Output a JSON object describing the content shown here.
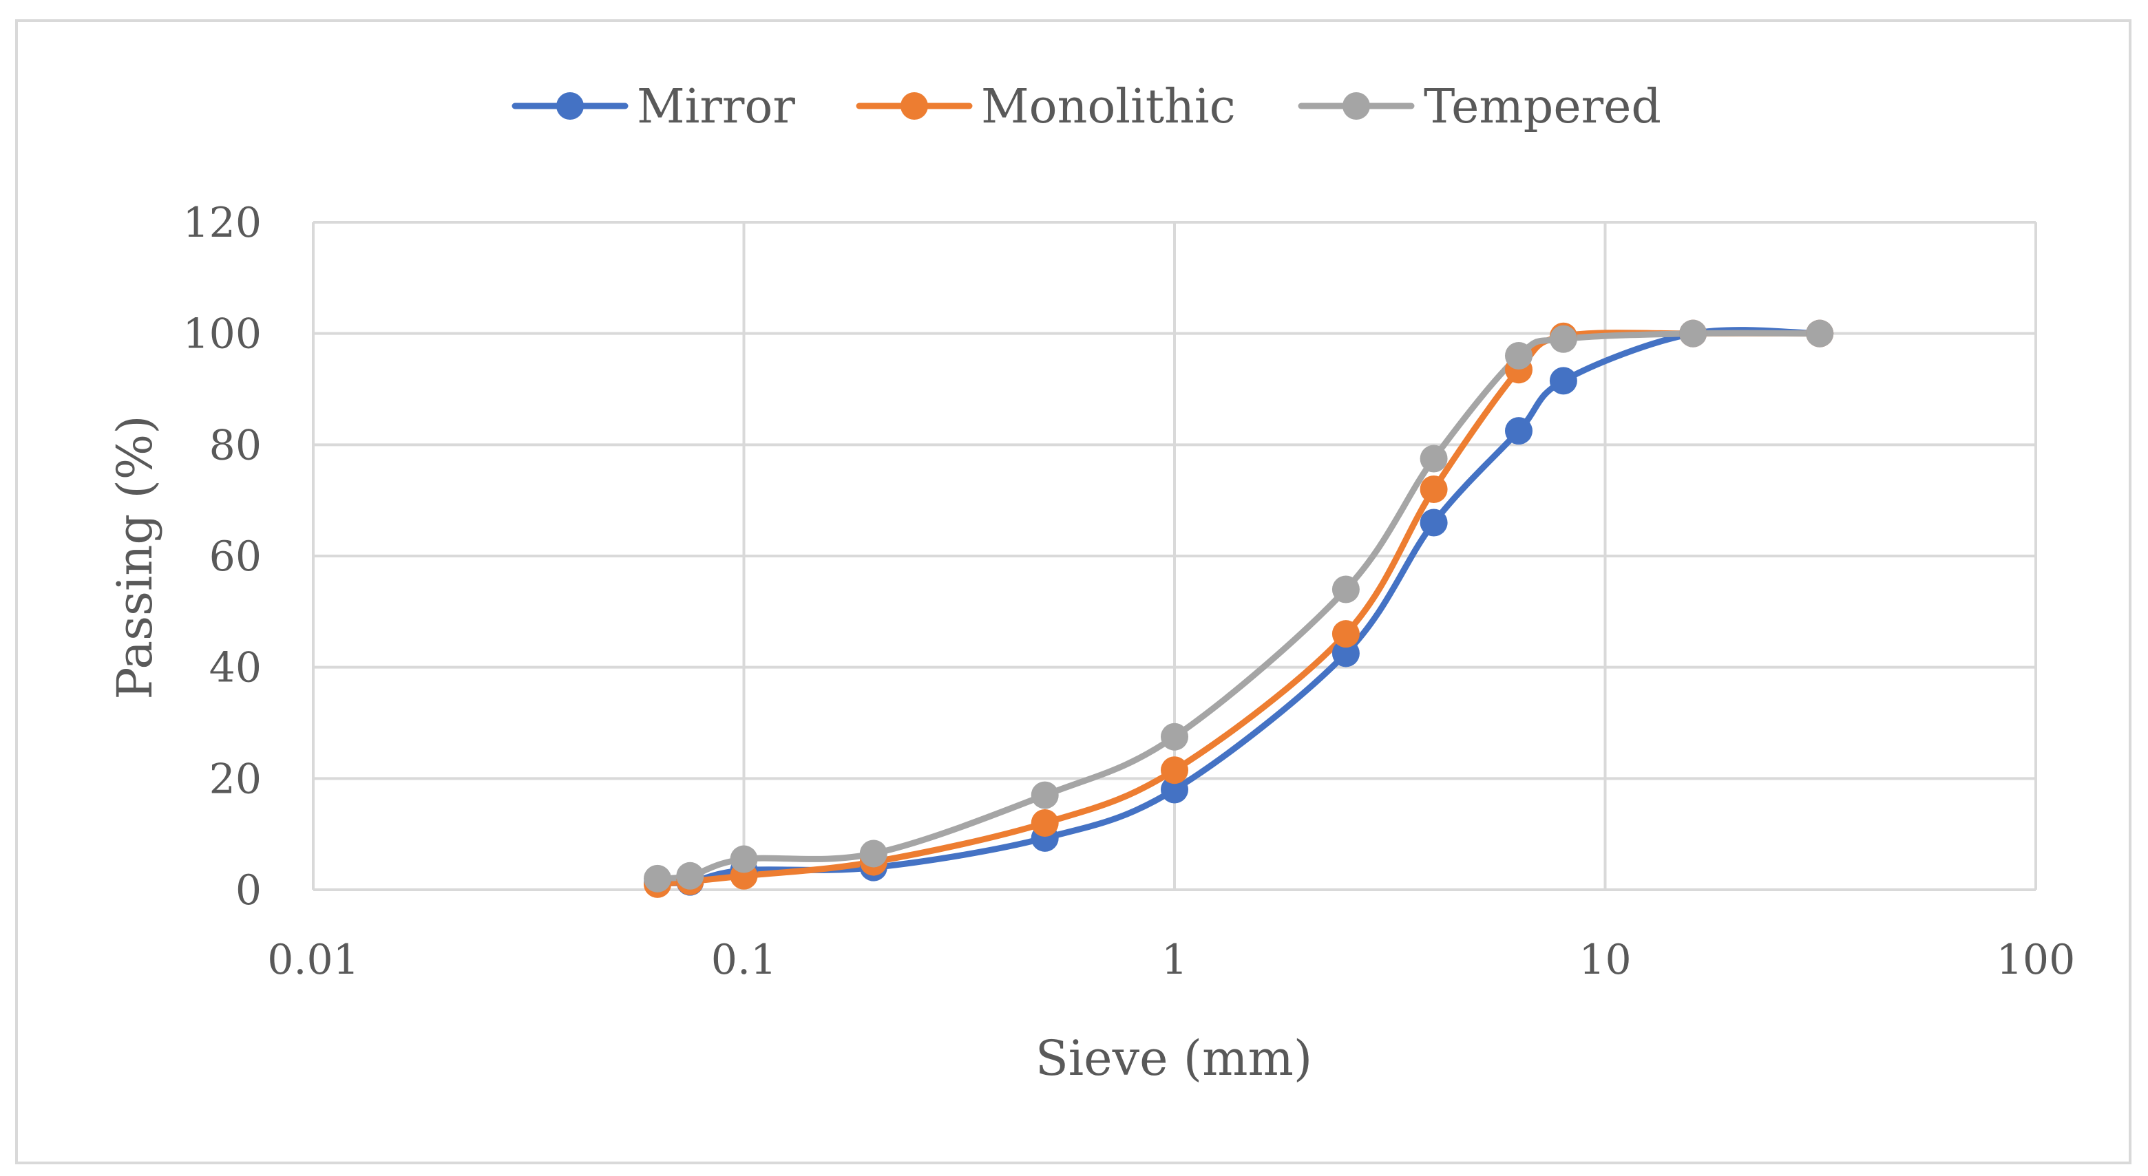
{
  "chart_data": {
    "type": "line",
    "title": "",
    "xlabel": "Sieve (mm)",
    "ylabel": "Passing (%)",
    "xscale": "log",
    "xlim": [
      0.01,
      100
    ],
    "ylim": [
      0,
      120
    ],
    "xticks": [
      0.01,
      0.1,
      1,
      10,
      100
    ],
    "xtick_labels": [
      "0.01",
      "0.1",
      "1",
      "10",
      "100"
    ],
    "yticks": [
      0,
      20,
      40,
      60,
      80,
      100,
      120
    ],
    "ytick_labels": [
      "0",
      "20",
      "40",
      "60",
      "80",
      "100",
      "120"
    ],
    "grid": true,
    "legend_position": "top-center",
    "series": [
      {
        "name": "Mirror",
        "color": "#4472C4",
        "x": [
          0.063,
          0.075,
          0.1,
          0.2,
          0.5,
          1,
          2.5,
          4,
          6.3,
          8,
          16,
          31.5
        ],
        "y": [
          1.2,
          1.4,
          3.5,
          4.0,
          9.3,
          18.0,
          42.5,
          66.0,
          82.5,
          91.5,
          100,
          100
        ]
      },
      {
        "name": "Monolithic",
        "color": "#ED7D31",
        "x": [
          0.063,
          0.075,
          0.1,
          0.2,
          0.5,
          1,
          2.5,
          4,
          6.3,
          8,
          16,
          31.5
        ],
        "y": [
          1.0,
          1.5,
          2.5,
          5.0,
          12.0,
          21.5,
          46.0,
          72.0,
          93.5,
          99.5,
          100,
          100
        ]
      },
      {
        "name": "Tempered",
        "color": "#A5A5A5",
        "x": [
          0.063,
          0.075,
          0.1,
          0.2,
          0.5,
          1,
          2.5,
          4,
          6.3,
          8,
          16,
          31.5
        ],
        "y": [
          2.0,
          2.5,
          5.5,
          6.5,
          17.0,
          27.5,
          54.0,
          77.5,
          96.0,
          99.0,
          100,
          100
        ]
      }
    ]
  }
}
